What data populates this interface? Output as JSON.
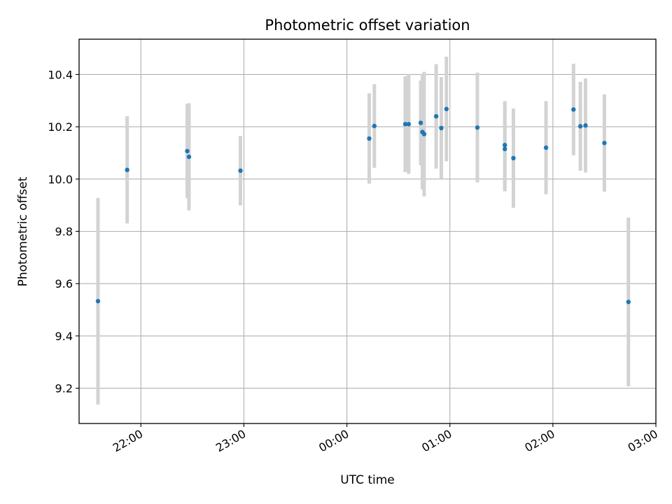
{
  "chart_data": {
    "type": "scatter",
    "title": "Photometric offset variation",
    "xlabel": "UTC time",
    "ylabel": "Photometric offset",
    "x_axis": {
      "kind": "time",
      "range": [
        "21:24",
        "03:00"
      ],
      "ticks": [
        "22:00",
        "23:00",
        "00:00",
        "01:00",
        "02:00",
        "03:00"
      ]
    },
    "y_axis": {
      "range": [
        9.065,
        10.535
      ],
      "ticks": [
        9.2,
        9.4,
        9.6,
        9.8,
        10.0,
        10.2,
        10.4
      ],
      "tick_labels": [
        "9.2",
        "9.4",
        "9.6",
        "9.8",
        "10.0",
        "10.2",
        "10.4"
      ]
    },
    "grid": true,
    "colors": {
      "points": "#1f77b4",
      "errorbars": "#d3d3d3",
      "grid": "#b0b0b0"
    },
    "points": [
      {
        "x": "21:35",
        "y": 9.533,
        "err": 0.395
      },
      {
        "x": "21:52",
        "y": 10.035,
        "err": 0.205
      },
      {
        "x": "22:27",
        "y": 10.107,
        "err": 0.18
      },
      {
        "x": "22:28",
        "y": 10.085,
        "err": 0.205
      },
      {
        "x": "22:58",
        "y": 10.032,
        "err": 0.133
      },
      {
        "x": "00:13",
        "y": 10.155,
        "err": 0.173
      },
      {
        "x": "00:16",
        "y": 10.203,
        "err": 0.16
      },
      {
        "x": "00:34",
        "y": 10.21,
        "err": 0.183
      },
      {
        "x": "00:36",
        "y": 10.21,
        "err": 0.19
      },
      {
        "x": "00:43",
        "y": 10.215,
        "err": 0.162
      },
      {
        "x": "00:44",
        "y": 10.18,
        "err": 0.22
      },
      {
        "x": "00:45",
        "y": 10.172,
        "err": 0.238
      },
      {
        "x": "00:52",
        "y": 10.24,
        "err": 0.2
      },
      {
        "x": "00:55",
        "y": 10.195,
        "err": 0.195
      },
      {
        "x": "00:58",
        "y": 10.268,
        "err": 0.2
      },
      {
        "x": "01:16",
        "y": 10.197,
        "err": 0.21
      },
      {
        "x": "01:32",
        "y": 10.13,
        "err": 0.168
      },
      {
        "x": "01:32",
        "y": 10.115,
        "err": 0.162
      },
      {
        "x": "01:37",
        "y": 10.08,
        "err": 0.19
      },
      {
        "x": "01:56",
        "y": 10.12,
        "err": 0.178
      },
      {
        "x": "02:12",
        "y": 10.266,
        "err": 0.175
      },
      {
        "x": "02:16",
        "y": 10.202,
        "err": 0.17
      },
      {
        "x": "02:19",
        "y": 10.205,
        "err": 0.18
      },
      {
        "x": "02:30",
        "y": 10.138,
        "err": 0.186
      },
      {
        "x": "02:44",
        "y": 9.53,
        "err": 0.323
      }
    ]
  }
}
